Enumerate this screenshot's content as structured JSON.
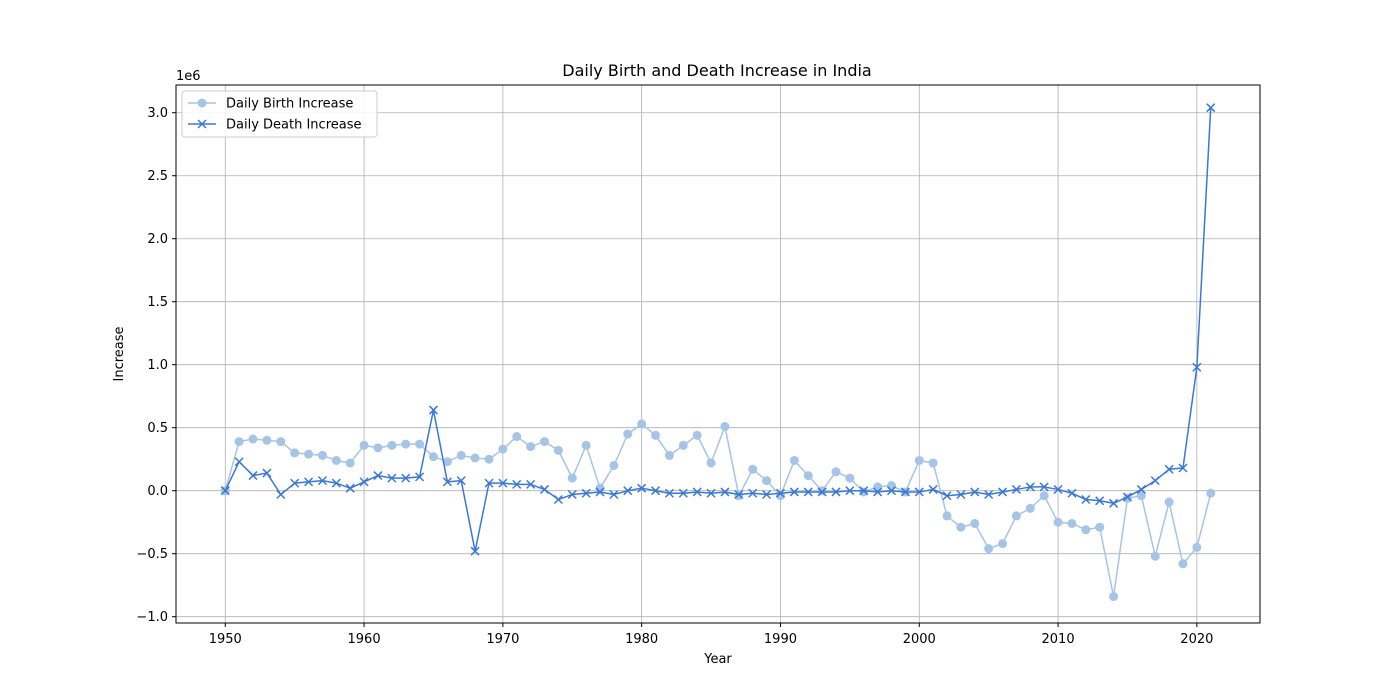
{
  "chart_data": {
    "type": "line",
    "title": "Daily Birth and Death Increase in India",
    "xlabel": "Year",
    "ylabel": "Increase",
    "y_scale_label": "1e6",
    "xlim": [
      1946.45,
      2024.55
    ],
    "ylim": [
      -1.05,
      3.22
    ],
    "x_ticks": [
      1950,
      1960,
      1970,
      1980,
      1990,
      2000,
      2010,
      2020
    ],
    "y_ticks": [
      -1.0,
      -0.5,
      0.0,
      0.5,
      1.0,
      1.5,
      2.0,
      2.5,
      3.0
    ],
    "y_tick_labels": [
      "−1.0",
      "−0.5",
      "0.0",
      "0.5",
      "1.0",
      "1.5",
      "2.0",
      "2.5",
      "3.0"
    ],
    "grid": true,
    "legend_position": "top-left",
    "x": [
      1950,
      1951,
      1952,
      1953,
      1954,
      1955,
      1956,
      1957,
      1958,
      1959,
      1960,
      1961,
      1962,
      1963,
      1964,
      1965,
      1966,
      1967,
      1968,
      1969,
      1970,
      1971,
      1972,
      1973,
      1974,
      1975,
      1976,
      1977,
      1978,
      1979,
      1980,
      1981,
      1982,
      1983,
      1984,
      1985,
      1986,
      1987,
      1988,
      1989,
      1990,
      1991,
      1992,
      1993,
      1994,
      1995,
      1996,
      1997,
      1998,
      1999,
      2000,
      2001,
      2002,
      2003,
      2004,
      2005,
      2006,
      2007,
      2008,
      2009,
      2010,
      2011,
      2012,
      2013,
      2014,
      2015,
      2016,
      2017,
      2018,
      2019,
      2020,
      2021
    ],
    "series": [
      {
        "name": "Daily Birth Increase",
        "color": "#a6c4e5",
        "marker": "circle",
        "values": [
          0.0,
          0.39,
          0.41,
          0.4,
          0.39,
          0.3,
          0.29,
          0.28,
          0.24,
          0.22,
          0.36,
          0.34,
          0.36,
          0.37,
          0.37,
          0.27,
          0.23,
          0.28,
          0.26,
          0.25,
          0.33,
          0.43,
          0.35,
          0.39,
          0.32,
          0.1,
          0.36,
          0.02,
          0.2,
          0.45,
          0.53,
          0.44,
          0.28,
          0.36,
          0.44,
          0.22,
          0.51,
          -0.04,
          0.17,
          0.08,
          -0.04,
          0.24,
          0.12,
          0.0,
          0.15,
          0.1,
          -0.01,
          0.03,
          0.04,
          -0.01,
          0.24,
          0.22,
          -0.2,
          -0.29,
          -0.26,
          -0.46,
          -0.42,
          -0.2,
          -0.14,
          -0.04,
          -0.25,
          -0.26,
          -0.31,
          -0.29,
          -0.84,
          -0.06,
          -0.04,
          -0.52,
          -0.09,
          -0.58,
          -0.45,
          -0.02
        ]
      },
      {
        "name": "Daily Death Increase",
        "color": "#3a78d8",
        "marker": "x",
        "values": [
          0.0,
          0.23,
          0.12,
          0.14,
          -0.03,
          0.06,
          0.07,
          0.08,
          0.06,
          0.02,
          0.07,
          0.12,
          0.1,
          0.1,
          0.11,
          0.64,
          0.07,
          0.08,
          -0.48,
          0.06,
          0.06,
          0.05,
          0.05,
          0.01,
          -0.07,
          -0.03,
          -0.02,
          -0.01,
          -0.03,
          0.0,
          0.02,
          0.0,
          -0.02,
          -0.02,
          -0.01,
          -0.02,
          -0.01,
          -0.03,
          -0.02,
          -0.03,
          -0.02,
          -0.01,
          -0.01,
          -0.01,
          -0.01,
          0.0,
          0.0,
          -0.01,
          0.0,
          -0.01,
          -0.01,
          0.01,
          -0.04,
          -0.03,
          -0.01,
          -0.03,
          -0.01,
          0.01,
          0.03,
          0.03,
          0.01,
          -0.02,
          -0.07,
          -0.08,
          -0.1,
          -0.05,
          0.01,
          0.08,
          0.17,
          0.18,
          0.98,
          3.04
        ]
      }
    ]
  }
}
